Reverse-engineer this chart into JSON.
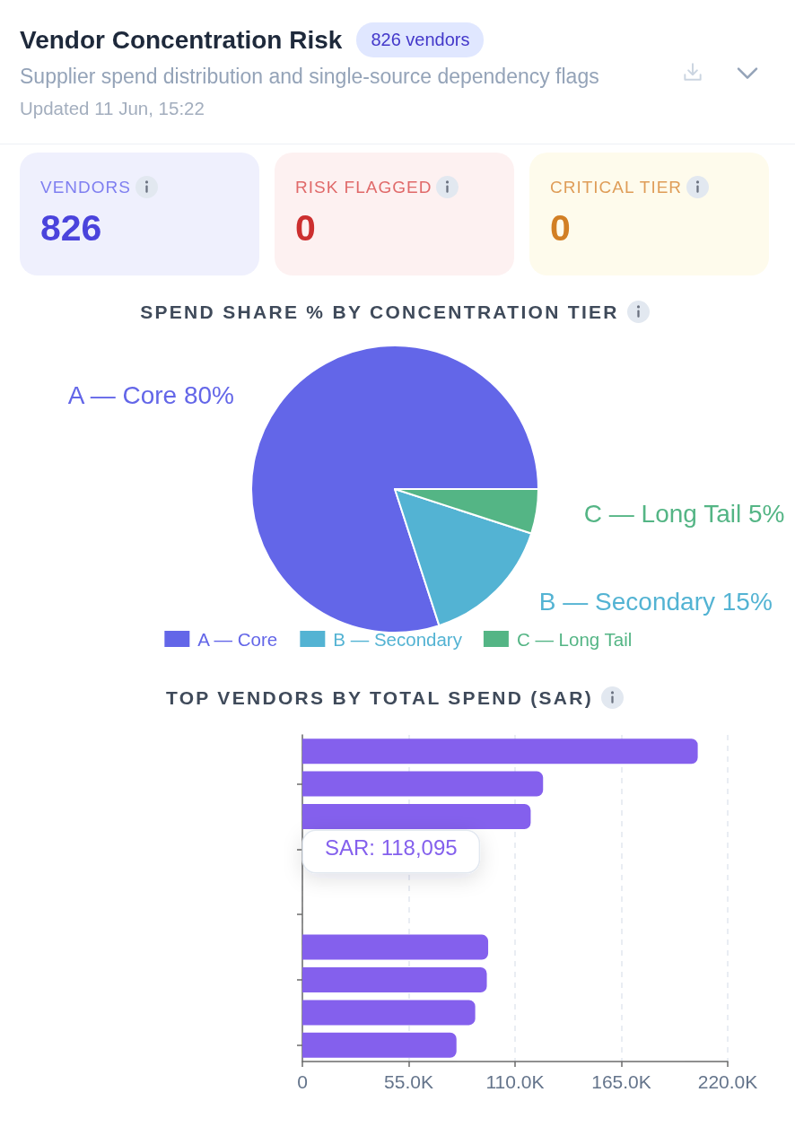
{
  "chart_data": [
    {
      "type": "other",
      "title": "Vendor Concentration Risk",
      "subtitle": "Supplier spend distribution and single-source dependency flags",
      "annotations": [
        "826 vendors",
        "Updated 11 Jun, 15:22",
        "VENDORS",
        "826",
        "RISK FLAGGED",
        "0",
        "CRITICAL TIER",
        "0"
      ]
    },
    {
      "type": "pie",
      "title": "SPEND SHARE % BY CONCENTRATION TIER",
      "categories": [
        "A — Core",
        "B — Secondary",
        "C — Long Tail"
      ],
      "values": [
        80,
        15,
        5
      ],
      "colors": [
        "#6366e8",
        "#53b3d3",
        "#54b585"
      ],
      "value_labels": [
        "80%",
        "15%",
        "5%"
      ],
      "legend": "bottom"
    },
    {
      "type": "bar",
      "title": "TOP VENDORS BY TOTAL SPEND (SAR)",
      "orientation": "horizontal",
      "categories": [
        null,
        null,
        null,
        null,
        null,
        null,
        null,
        null,
        null,
        null
      ],
      "values": [
        204500,
        124500,
        118095,
        null,
        null,
        null,
        96100,
        95400,
        89400,
        79700
      ],
      "value_labels": [
        null,
        null,
        "SAR: 118,095",
        null,
        null,
        null,
        null,
        null,
        null,
        null
      ],
      "color": "#8460ed",
      "xlim": [
        0,
        220000
      ],
      "xticks": [
        0,
        {
          "value": 55000,
          "label": "55.0K"
        },
        {
          "value": 110000,
          "label": "110.0K"
        },
        {
          "value": 165000,
          "label": "165.0K"
        },
        {
          "value": 220000,
          "label": "220.0K"
        }
      ],
      "grid": "x"
    }
  ]
}
